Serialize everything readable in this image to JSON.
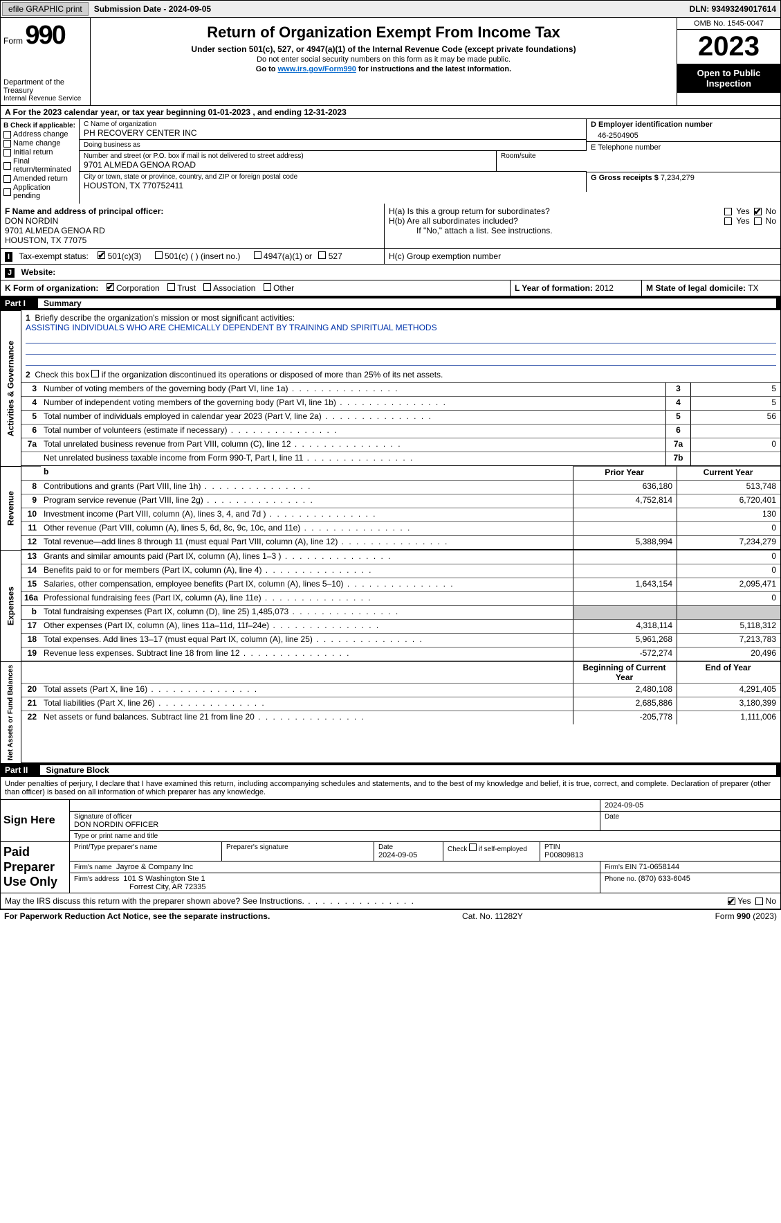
{
  "topbar": {
    "efile": "efile GRAPHIC print",
    "submission": "Submission Date - 2024-09-05",
    "dln_label": "DLN:",
    "dln": "93493249017614"
  },
  "header": {
    "form_word": "Form",
    "form_num": "990",
    "dept": "Department of the Treasury",
    "irs": "Internal Revenue Service",
    "title": "Return of Organization Exempt From Income Tax",
    "sub": "Under section 501(c), 527, or 4947(a)(1) of the Internal Revenue Code (except private foundations)",
    "line1": "Do not enter social security numbers on this form as it may be made public.",
    "line2_pre": "Go to ",
    "line2_link": "www.irs.gov/Form990",
    "line2_post": " for instructions and the latest information.",
    "omb": "OMB No. 1545-0047",
    "year": "2023",
    "open1": "Open to Public",
    "open2": "Inspection"
  },
  "section_a": "A  For the 2023 calendar year, or tax year beginning 01-01-2023    , and ending 12-31-2023",
  "box_b": {
    "title": "B Check if applicable:",
    "opts": [
      "Address change",
      "Name change",
      "Initial return",
      "Final return/terminated",
      "Amended return",
      "Application pending"
    ]
  },
  "box_c": {
    "name_lbl": "C Name of organization",
    "name": "PH RECOVERY CENTER INC",
    "dba_lbl": "Doing business as",
    "dba": "",
    "street_lbl": "Number and street (or P.O. box if mail is not delivered to street address)",
    "street": "9701 ALMEDA GENOA ROAD",
    "room_lbl": "Room/suite",
    "room": "",
    "city_lbl": "City or town, state or province, country, and ZIP or foreign postal code",
    "city": "HOUSTON, TX  770752411"
  },
  "box_d": {
    "ein_lbl": "D Employer identification number",
    "ein": "46-2504905",
    "phone_lbl": "E Telephone number",
    "phone": "",
    "gross_lbl": "G Gross receipts $",
    "gross": "7,234,279"
  },
  "box_f": {
    "lbl": "F  Name and address of principal officer:",
    "name": "DON NORDIN",
    "addr1": "9701 ALMEDA GENOA RD",
    "addr2": "HOUSTON, TX  77075"
  },
  "box_h": {
    "ha_lbl": "H(a)  Is this a group return for subordinates?",
    "hb_lbl": "H(b)  Are all subordinates included?",
    "hb_note": "If \"No,\" attach a list. See instructions.",
    "hc_lbl": "H(c)  Group exemption number",
    "yes": "Yes",
    "no": "No"
  },
  "box_i": {
    "lbl": "Tax-exempt status:",
    "o1": "501(c)(3)",
    "o2": "501(c) (  ) (insert no.)",
    "o3": "4947(a)(1) or",
    "o4": "527"
  },
  "box_j": {
    "lbl": "Website:",
    "val": ""
  },
  "box_k": {
    "lbl": "K Form of organization:",
    "o1": "Corporation",
    "o2": "Trust",
    "o3": "Association",
    "o4": "Other"
  },
  "box_l": {
    "lbl": "L Year of formation:",
    "val": "2012"
  },
  "box_m": {
    "lbl": "M State of legal domicile:",
    "val": "TX"
  },
  "part1": {
    "label": "Part I",
    "title": "Summary"
  },
  "summary": {
    "activities_label": "Activities & Governance",
    "revenue_label": "Revenue",
    "expenses_label": "Expenses",
    "netassets_label": "Net Assets or Fund Balances",
    "line1_lbl": "Briefly describe the organization's mission or most significant activities:",
    "line1_val": "ASSISTING INDIVIDUALS WHO ARE CHEMICALLY DEPENDENT BY TRAINING AND SPIRITUAL METHODS",
    "line2": "Check this box      if the organization discontinued its operations or disposed of more than 25% of its net assets.",
    "rows_ag": [
      {
        "n": "3",
        "lbl": "Number of voting members of the governing body (Part VI, line 1a)",
        "box": "3",
        "val": "5"
      },
      {
        "n": "4",
        "lbl": "Number of independent voting members of the governing body (Part VI, line 1b)",
        "box": "4",
        "val": "5"
      },
      {
        "n": "5",
        "lbl": "Total number of individuals employed in calendar year 2023 (Part V, line 2a)",
        "box": "5",
        "val": "56"
      },
      {
        "n": "6",
        "lbl": "Total number of volunteers (estimate if necessary)",
        "box": "6",
        "val": ""
      },
      {
        "n": "7a",
        "lbl": "Total unrelated business revenue from Part VIII, column (C), line 12",
        "box": "7a",
        "val": "0"
      },
      {
        "n": "",
        "lbl": "Net unrelated business taxable income from Form 990-T, Part I, line 11",
        "box": "7b",
        "val": ""
      }
    ],
    "header2": {
      "prior": "Prior Year",
      "current": "Current Year"
    },
    "rows_rev": [
      {
        "n": "8",
        "lbl": "Contributions and grants (Part VIII, line 1h)",
        "v1": "636,180",
        "v2": "513,748"
      },
      {
        "n": "9",
        "lbl": "Program service revenue (Part VIII, line 2g)",
        "v1": "4,752,814",
        "v2": "6,720,401"
      },
      {
        "n": "10",
        "lbl": "Investment income (Part VIII, column (A), lines 3, 4, and 7d )",
        "v1": "",
        "v2": "130"
      },
      {
        "n": "11",
        "lbl": "Other revenue (Part VIII, column (A), lines 5, 6d, 8c, 9c, 10c, and 11e)",
        "v1": "",
        "v2": "0"
      },
      {
        "n": "12",
        "lbl": "Total revenue—add lines 8 through 11 (must equal Part VIII, column (A), line 12)",
        "v1": "5,388,994",
        "v2": "7,234,279"
      }
    ],
    "rows_exp": [
      {
        "n": "13",
        "lbl": "Grants and similar amounts paid (Part IX, column (A), lines 1–3 )",
        "v1": "",
        "v2": "0"
      },
      {
        "n": "14",
        "lbl": "Benefits paid to or for members (Part IX, column (A), line 4)",
        "v1": "",
        "v2": "0"
      },
      {
        "n": "15",
        "lbl": "Salaries, other compensation, employee benefits (Part IX, column (A), lines 5–10)",
        "v1": "1,643,154",
        "v2": "2,095,471"
      },
      {
        "n": "16a",
        "lbl": "Professional fundraising fees (Part IX, column (A), line 11e)",
        "v1": "",
        "v2": "0"
      },
      {
        "n": "b",
        "lbl": "Total fundraising expenses (Part IX, column (D), line 25) 1,485,073",
        "v1": "SHADED",
        "v2": "SHADED"
      },
      {
        "n": "17",
        "lbl": "Other expenses (Part IX, column (A), lines 11a–11d, 11f–24e)",
        "v1": "4,318,114",
        "v2": "5,118,312"
      },
      {
        "n": "18",
        "lbl": "Total expenses. Add lines 13–17 (must equal Part IX, column (A), line 25)",
        "v1": "5,961,268",
        "v2": "7,213,783"
      },
      {
        "n": "19",
        "lbl": "Revenue less expenses. Subtract line 18 from line 12",
        "v1": "-572,274",
        "v2": "20,496"
      }
    ],
    "header3": {
      "prior": "Beginning of Current Year",
      "current": "End of Year"
    },
    "rows_net": [
      {
        "n": "20",
        "lbl": "Total assets (Part X, line 16)",
        "v1": "2,480,108",
        "v2": "4,291,405"
      },
      {
        "n": "21",
        "lbl": "Total liabilities (Part X, line 26)",
        "v1": "2,685,886",
        "v2": "3,180,399"
      },
      {
        "n": "22",
        "lbl": "Net assets or fund balances. Subtract line 21 from line 20",
        "v1": "-205,778",
        "v2": "1,111,006"
      }
    ]
  },
  "part2": {
    "label": "Part II",
    "title": "Signature Block"
  },
  "sig": {
    "declaration": "Under penalties of perjury, I declare that I have examined this return, including accompanying schedules and statements, and to the best of my knowledge and belief, it is true, correct, and complete. Declaration of preparer (other than officer) is based on all information of which preparer has any knowledge.",
    "sign_here": "Sign Here",
    "sig_officer_lbl": "Signature of officer",
    "sig_officer": "DON NORDIN OFFICER",
    "sig_type_lbl": "Type or print name and title",
    "date_lbl": "Date",
    "date": "2024-09-05",
    "paid": "Paid Preparer Use Only",
    "prep_name_lbl": "Print/Type preparer's name",
    "prep_sig_lbl": "Preparer's signature",
    "prep_date": "2024-09-05",
    "self_emp": "Check      if self-employed",
    "ptin_lbl": "PTIN",
    "ptin": "P00809813",
    "firm_name_lbl": "Firm's name",
    "firm_name": "Jayroe & Company Inc",
    "firm_ein_lbl": "Firm's EIN",
    "firm_ein": "71-0658144",
    "firm_addr_lbl": "Firm's address",
    "firm_addr1": "101 S Washington Ste 1",
    "firm_addr2": "Forrest City, AR  72335",
    "phone_lbl": "Phone no.",
    "phone": "(870) 633-6045",
    "discuss": "May the IRS discuss this return with the preparer shown above? See Instructions."
  },
  "footer": {
    "left": "For Paperwork Reduction Act Notice, see the separate instructions.",
    "center": "Cat. No. 11282Y",
    "right_pre": "Form ",
    "right_form": "990",
    "right_post": " (2023)"
  },
  "colors": {
    "link": "#0066cc",
    "black": "#000000",
    "shade": "#cccccc"
  }
}
